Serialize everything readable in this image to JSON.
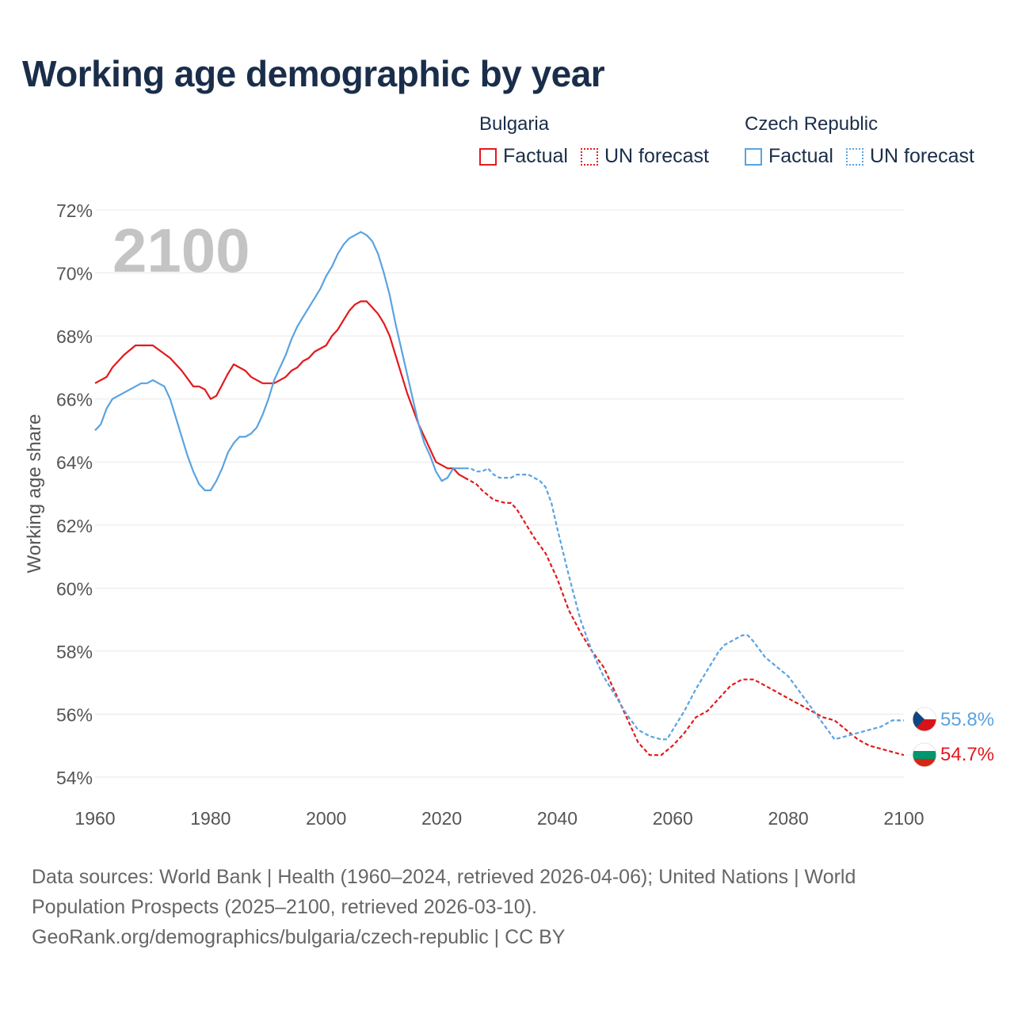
{
  "title": "Working age demographic by year",
  "year_watermark": "2100",
  "legend": {
    "groups": [
      {
        "name": "Bulgaria",
        "color": "#e3191c",
        "factual_label": "Factual",
        "forecast_label": "UN forecast"
      },
      {
        "name": "Czech Republic",
        "color": "#5aa3e0",
        "factual_label": "Factual",
        "forecast_label": "UN forecast"
      }
    ]
  },
  "footer": {
    "line1": "Data sources: World Bank | Health (1960–2024, retrieved 2026-04-06); United Nations | World",
    "line2": "Population Prospects (2025–2100, retrieved 2026-03-10).",
    "line3": "GeoRank.org/demographics/bulgaria/czech-republic | CC BY"
  },
  "chart_data": {
    "type": "line",
    "title": "Working age demographic by year",
    "xlabel": "",
    "ylabel": "Working age share",
    "xlim": [
      1960,
      2100
    ],
    "ylim": [
      54,
      72
    ],
    "x_ticks": [
      1960,
      1980,
      2000,
      2020,
      2040,
      2060,
      2080,
      2100
    ],
    "y_ticks": [
      54,
      56,
      58,
      60,
      62,
      64,
      66,
      68,
      70,
      72
    ],
    "y_tick_suffix": "%",
    "grid": true,
    "forecast_start": 2024,
    "series": [
      {
        "name": "Bulgaria",
        "color": "#e3191c",
        "end_label": "54.7%",
        "points": [
          [
            1960,
            66.5
          ],
          [
            1962,
            66.7
          ],
          [
            1963,
            67.0
          ],
          [
            1965,
            67.4
          ],
          [
            1967,
            67.7
          ],
          [
            1970,
            67.7
          ],
          [
            1973,
            67.3
          ],
          [
            1975,
            66.9
          ],
          [
            1977,
            66.4
          ],
          [
            1978,
            66.4
          ],
          [
            1979,
            66.3
          ],
          [
            1980,
            66.0
          ],
          [
            1981,
            66.1
          ],
          [
            1983,
            66.8
          ],
          [
            1984,
            67.1
          ],
          [
            1986,
            66.9
          ],
          [
            1987,
            66.7
          ],
          [
            1989,
            66.5
          ],
          [
            1991,
            66.5
          ],
          [
            1993,
            66.7
          ],
          [
            1994,
            66.9
          ],
          [
            1995,
            67.0
          ],
          [
            1996,
            67.2
          ],
          [
            1997,
            67.3
          ],
          [
            1998,
            67.5
          ],
          [
            2000,
            67.7
          ],
          [
            2001,
            68.0
          ],
          [
            2002,
            68.2
          ],
          [
            2003,
            68.5
          ],
          [
            2004,
            68.8
          ],
          [
            2005,
            69.0
          ],
          [
            2006,
            69.1
          ],
          [
            2007,
            69.1
          ],
          [
            2008,
            68.9
          ],
          [
            2009,
            68.7
          ],
          [
            2010,
            68.4
          ],
          [
            2011,
            68.0
          ],
          [
            2012,
            67.4
          ],
          [
            2013,
            66.8
          ],
          [
            2014,
            66.2
          ],
          [
            2015,
            65.7
          ],
          [
            2016,
            65.2
          ],
          [
            2017,
            64.8
          ],
          [
            2018,
            64.4
          ],
          [
            2019,
            64.0
          ],
          [
            2020,
            63.9
          ],
          [
            2021,
            63.8
          ],
          [
            2022,
            63.8
          ],
          [
            2023,
            63.6
          ],
          [
            2024,
            63.5
          ],
          [
            2026,
            63.3
          ],
          [
            2027,
            63.1
          ],
          [
            2029,
            62.8
          ],
          [
            2031,
            62.7
          ],
          [
            2032,
            62.7
          ],
          [
            2033,
            62.5
          ],
          [
            2034,
            62.2
          ],
          [
            2035,
            61.9
          ],
          [
            2036,
            61.6
          ],
          [
            2038,
            61.1
          ],
          [
            2040,
            60.3
          ],
          [
            2042,
            59.3
          ],
          [
            2044,
            58.6
          ],
          [
            2046,
            58.0
          ],
          [
            2048,
            57.5
          ],
          [
            2050,
            56.7
          ],
          [
            2052,
            55.9
          ],
          [
            2054,
            55.1
          ],
          [
            2056,
            54.7
          ],
          [
            2058,
            54.7
          ],
          [
            2060,
            55.0
          ],
          [
            2062,
            55.4
          ],
          [
            2064,
            55.9
          ],
          [
            2066,
            56.1
          ],
          [
            2068,
            56.5
          ],
          [
            2070,
            56.9
          ],
          [
            2072,
            57.1
          ],
          [
            2074,
            57.1
          ],
          [
            2076,
            56.9
          ],
          [
            2078,
            56.7
          ],
          [
            2080,
            56.5
          ],
          [
            2082,
            56.3
          ],
          [
            2084,
            56.1
          ],
          [
            2086,
            55.9
          ],
          [
            2088,
            55.8
          ],
          [
            2090,
            55.5
          ],
          [
            2092,
            55.2
          ],
          [
            2094,
            55.0
          ],
          [
            2096,
            54.9
          ],
          [
            2098,
            54.8
          ],
          [
            2100,
            54.7
          ]
        ]
      },
      {
        "name": "Czech Republic",
        "color": "#5aa3e0",
        "end_label": "55.8%",
        "points": [
          [
            1960,
            65.0
          ],
          [
            1961,
            65.2
          ],
          [
            1962,
            65.7
          ],
          [
            1963,
            66.0
          ],
          [
            1965,
            66.2
          ],
          [
            1967,
            66.4
          ],
          [
            1968,
            66.5
          ],
          [
            1969,
            66.5
          ],
          [
            1970,
            66.6
          ],
          [
            1972,
            66.4
          ],
          [
            1973,
            66.0
          ],
          [
            1974,
            65.4
          ],
          [
            1975,
            64.8
          ],
          [
            1976,
            64.2
          ],
          [
            1977,
            63.7
          ],
          [
            1978,
            63.3
          ],
          [
            1979,
            63.1
          ],
          [
            1980,
            63.1
          ],
          [
            1981,
            63.4
          ],
          [
            1982,
            63.8
          ],
          [
            1983,
            64.3
          ],
          [
            1984,
            64.6
          ],
          [
            1985,
            64.8
          ],
          [
            1986,
            64.8
          ],
          [
            1987,
            64.9
          ],
          [
            1988,
            65.1
          ],
          [
            1989,
            65.5
          ],
          [
            1990,
            66.0
          ],
          [
            1991,
            66.6
          ],
          [
            1992,
            67.0
          ],
          [
            1993,
            67.4
          ],
          [
            1994,
            67.9
          ],
          [
            1995,
            68.3
          ],
          [
            1996,
            68.6
          ],
          [
            1997,
            68.9
          ],
          [
            1998,
            69.2
          ],
          [
            1999,
            69.5
          ],
          [
            2000,
            69.9
          ],
          [
            2001,
            70.2
          ],
          [
            2002,
            70.6
          ],
          [
            2003,
            70.9
          ],
          [
            2004,
            71.1
          ],
          [
            2005,
            71.2
          ],
          [
            2006,
            71.3
          ],
          [
            2007,
            71.2
          ],
          [
            2008,
            71.0
          ],
          [
            2009,
            70.6
          ],
          [
            2010,
            70.0
          ],
          [
            2011,
            69.3
          ],
          [
            2012,
            68.4
          ],
          [
            2013,
            67.6
          ],
          [
            2014,
            66.8
          ],
          [
            2015,
            66.0
          ],
          [
            2016,
            65.2
          ],
          [
            2017,
            64.6
          ],
          [
            2018,
            64.2
          ],
          [
            2019,
            63.7
          ],
          [
            2020,
            63.4
          ],
          [
            2021,
            63.5
          ],
          [
            2022,
            63.8
          ],
          [
            2023,
            63.8
          ],
          [
            2024,
            63.8
          ],
          [
            2025,
            63.8
          ],
          [
            2026,
            63.7
          ],
          [
            2027,
            63.7
          ],
          [
            2028,
            63.8
          ],
          [
            2029,
            63.6
          ],
          [
            2030,
            63.5
          ],
          [
            2032,
            63.5
          ],
          [
            2033,
            63.6
          ],
          [
            2035,
            63.6
          ],
          [
            2036,
            63.5
          ],
          [
            2037,
            63.4
          ],
          [
            2038,
            63.2
          ],
          [
            2039,
            62.7
          ],
          [
            2040,
            61.9
          ],
          [
            2042,
            60.4
          ],
          [
            2044,
            59.0
          ],
          [
            2046,
            58.0
          ],
          [
            2048,
            57.2
          ],
          [
            2050,
            56.6
          ],
          [
            2052,
            56.0
          ],
          [
            2054,
            55.5
          ],
          [
            2056,
            55.3
          ],
          [
            2058,
            55.2
          ],
          [
            2059,
            55.2
          ],
          [
            2060,
            55.5
          ],
          [
            2062,
            56.1
          ],
          [
            2064,
            56.8
          ],
          [
            2066,
            57.4
          ],
          [
            2068,
            58.0
          ],
          [
            2069,
            58.2
          ],
          [
            2071,
            58.4
          ],
          [
            2072,
            58.5
          ],
          [
            2073,
            58.5
          ],
          [
            2074,
            58.3
          ],
          [
            2076,
            57.8
          ],
          [
            2078,
            57.5
          ],
          [
            2080,
            57.2
          ],
          [
            2082,
            56.7
          ],
          [
            2084,
            56.2
          ],
          [
            2086,
            55.7
          ],
          [
            2088,
            55.2
          ],
          [
            2090,
            55.3
          ],
          [
            2092,
            55.4
          ],
          [
            2094,
            55.5
          ],
          [
            2096,
            55.6
          ],
          [
            2098,
            55.8
          ],
          [
            2100,
            55.8
          ]
        ]
      }
    ]
  }
}
